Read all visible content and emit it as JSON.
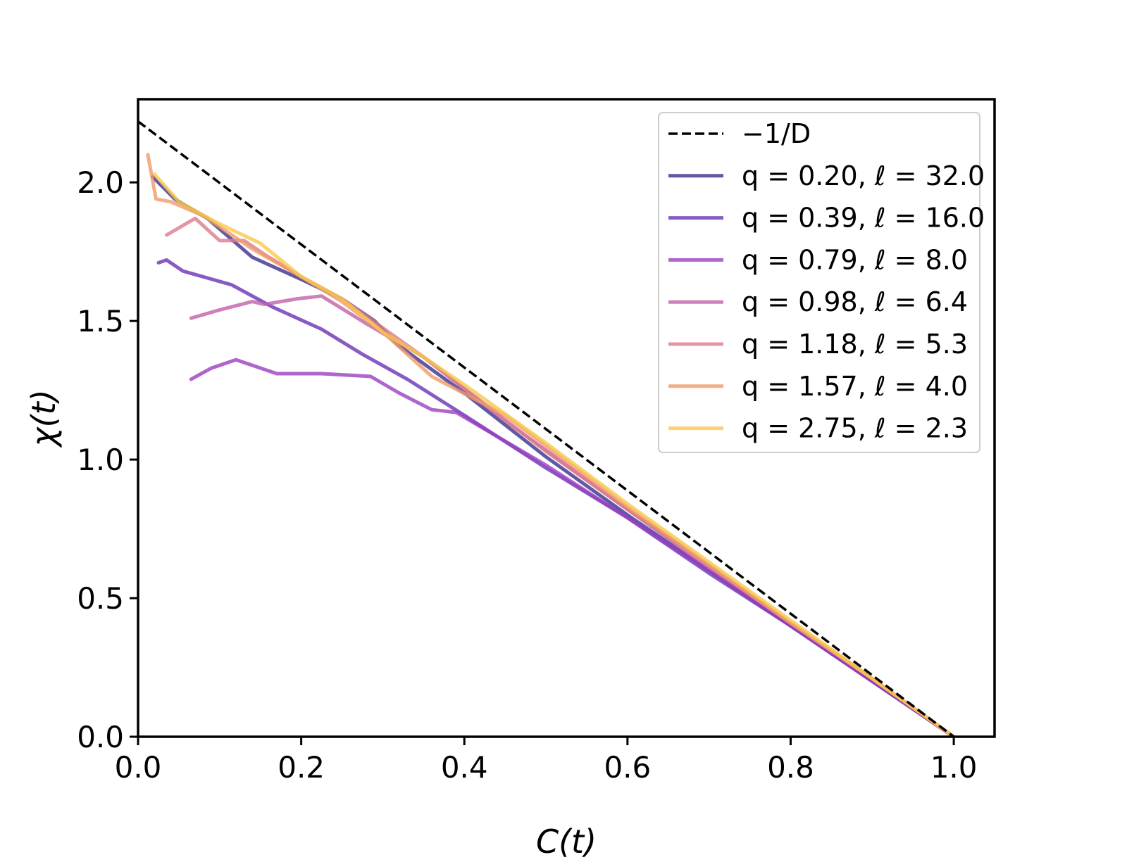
{
  "chart_data": {
    "type": "line",
    "title": "",
    "xlabel": "C(t)",
    "ylabel": "χ(t)",
    "xlim": [
      0.0,
      1.05
    ],
    "ylim": [
      0.0,
      2.3
    ],
    "xticks": [
      0.0,
      0.2,
      0.4,
      0.6,
      0.8,
      1.0
    ],
    "yticks": [
      0.0,
      0.5,
      1.0,
      1.5,
      2.0
    ],
    "xtick_labels": [
      "0.0",
      "0.2",
      "0.4",
      "0.6",
      "0.8",
      "1.0"
    ],
    "ytick_labels": [
      "0.0",
      "0.5",
      "1.0",
      "1.5",
      "2.0"
    ],
    "grid": false,
    "legend_position": "top-right",
    "reference_line": {
      "name": "−1/D",
      "style": "dashed",
      "color": "#000000",
      "x": [
        0.0,
        1.0
      ],
      "y": [
        2.22,
        0.0
      ]
    },
    "series": [
      {
        "name": "q = 0.20, ℓ = 32.0",
        "color": "#3b2f8f",
        "x": [
          0.018,
          0.045,
          0.085,
          0.14,
          0.2,
          0.25,
          0.29,
          0.32,
          0.4,
          0.5,
          0.6,
          0.7,
          0.8,
          0.9,
          1.0
        ],
        "y": [
          2.02,
          1.94,
          1.87,
          1.73,
          1.65,
          1.58,
          1.5,
          1.41,
          1.24,
          1.01,
          0.8,
          0.6,
          0.4,
          0.2,
          0.0
        ]
      },
      {
        "name": "q = 0.39, ℓ = 16.0",
        "color": "#6a32b5",
        "x": [
          0.025,
          0.035,
          0.055,
          0.115,
          0.165,
          0.225,
          0.275,
          0.33,
          0.4,
          0.5,
          0.6,
          0.7,
          0.8,
          0.9,
          1.0
        ],
        "y": [
          1.71,
          1.72,
          1.68,
          1.63,
          1.55,
          1.47,
          1.38,
          1.29,
          1.16,
          0.97,
          0.79,
          0.59,
          0.4,
          0.2,
          0.0
        ]
      },
      {
        "name": "q = 0.79, ℓ = 8.0",
        "color": "#9a3fbf",
        "x": [
          0.065,
          0.09,
          0.12,
          0.17,
          0.225,
          0.285,
          0.32,
          0.36,
          0.39,
          0.5,
          0.6,
          0.7,
          0.8,
          0.9,
          1.0
        ],
        "y": [
          1.29,
          1.33,
          1.36,
          1.31,
          1.31,
          1.3,
          1.24,
          1.18,
          1.17,
          0.98,
          0.79,
          0.6,
          0.4,
          0.2,
          0.0
        ]
      },
      {
        "name": "q = 0.98, ℓ = 6.4",
        "color": "#c060a8",
        "x": [
          0.065,
          0.1,
          0.14,
          0.155,
          0.195,
          0.225,
          0.28,
          0.35,
          0.45,
          0.6,
          0.7,
          0.8,
          0.9,
          1.0
        ],
        "y": [
          1.51,
          1.54,
          1.57,
          1.56,
          1.58,
          1.59,
          1.49,
          1.37,
          1.14,
          0.82,
          0.61,
          0.41,
          0.21,
          0.0
        ]
      },
      {
        "name": "q = 1.18, ℓ = 5.3",
        "color": "#dc7a8c",
        "x": [
          0.035,
          0.07,
          0.1,
          0.13,
          0.155,
          0.2,
          0.25,
          0.35,
          0.5,
          0.6,
          0.7,
          0.8,
          0.9,
          1.0
        ],
        "y": [
          1.81,
          1.87,
          1.79,
          1.79,
          1.74,
          1.66,
          1.58,
          1.37,
          1.03,
          0.82,
          0.62,
          0.41,
          0.21,
          0.0
        ]
      },
      {
        "name": "q = 1.57, ℓ = 4.0",
        "color": "#f09a6a",
        "x": [
          0.012,
          0.022,
          0.04,
          0.08,
          0.14,
          0.2,
          0.25,
          0.3,
          0.36,
          0.45,
          0.6,
          0.7,
          0.8,
          0.9,
          1.0
        ],
        "y": [
          2.1,
          1.94,
          1.93,
          1.88,
          1.76,
          1.66,
          1.57,
          1.46,
          1.3,
          1.16,
          0.83,
          0.62,
          0.41,
          0.21,
          0.0
        ]
      },
      {
        "name": "q = 2.75, ℓ = 2.3",
        "color": "#f8c84a",
        "x": [
          0.02,
          0.05,
          0.1,
          0.15,
          0.2,
          0.25,
          0.3,
          0.35,
          0.4,
          0.5,
          0.6,
          0.7,
          0.8,
          0.9,
          1.0
        ],
        "y": [
          2.03,
          1.93,
          1.85,
          1.78,
          1.66,
          1.58,
          1.46,
          1.37,
          1.27,
          1.06,
          0.84,
          0.63,
          0.42,
          0.21,
          0.0
        ]
      }
    ]
  }
}
